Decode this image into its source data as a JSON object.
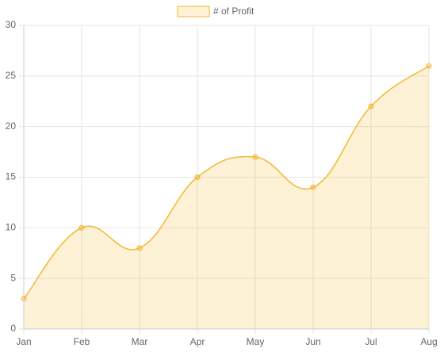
{
  "chart_data": {
    "type": "line",
    "categories": [
      "Jan",
      "Feb",
      "Mar",
      "Apr",
      "May",
      "Jun",
      "Jul",
      "Aug"
    ],
    "series": [
      {
        "name": "# of Profit",
        "color": "#f5b731",
        "values": [
          3,
          10,
          8,
          15,
          17,
          14,
          22,
          26
        ]
      }
    ],
    "ylim": [
      0,
      30
    ],
    "yticks": [
      0,
      5,
      10,
      15,
      20,
      25,
      30
    ],
    "grid": true,
    "fill": true,
    "legend": "top"
  }
}
